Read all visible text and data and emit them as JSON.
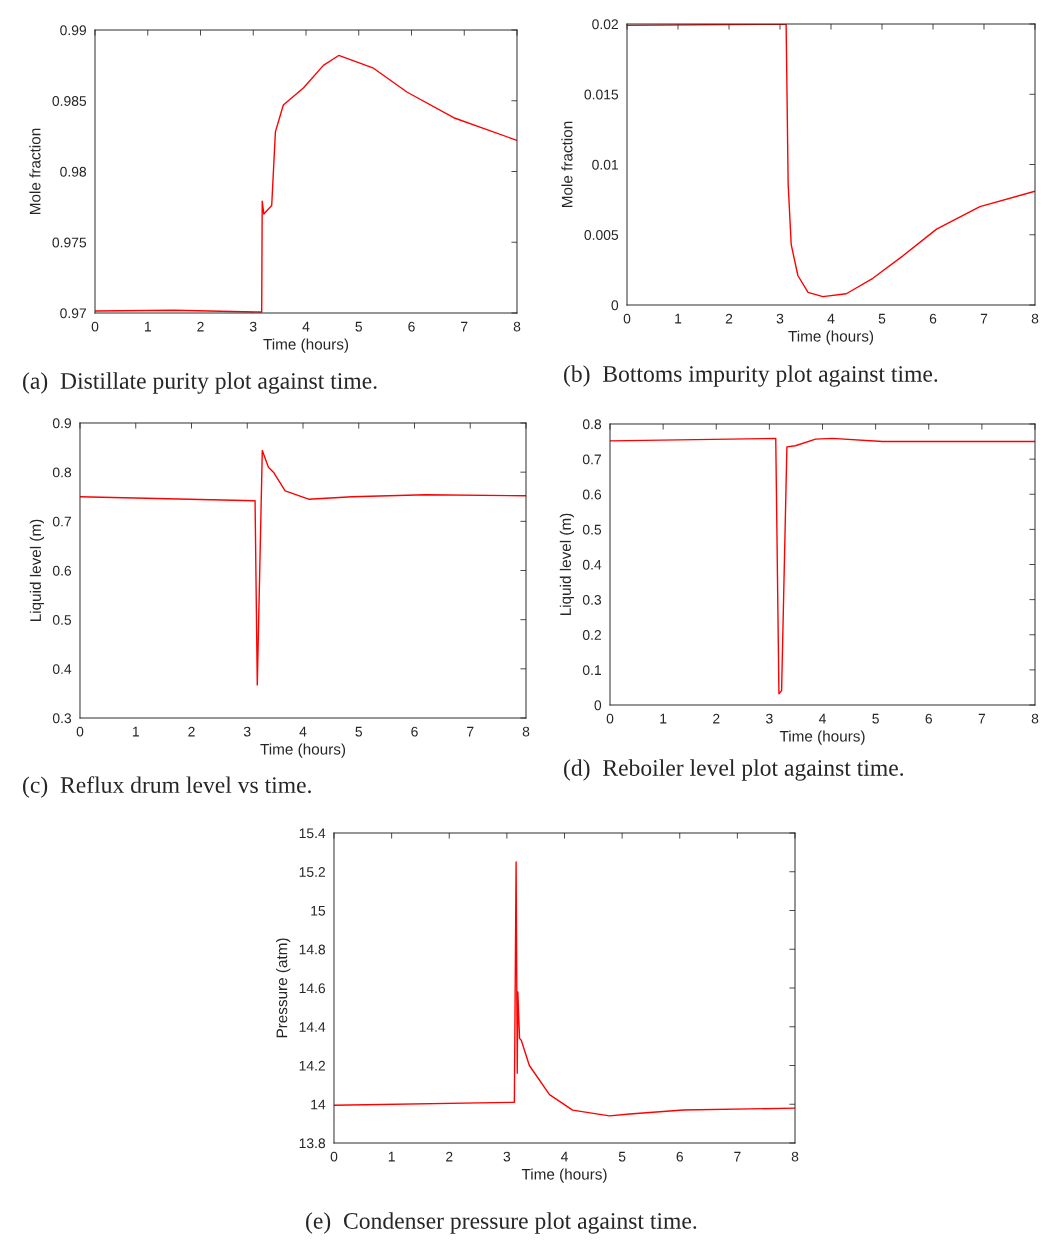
{
  "chart_data": [
    {
      "type": "line",
      "xlabel": "Time (hours)",
      "ylabel": "Mole fraction",
      "annotations": [
        "(a)  Distillate purity plot against time."
      ],
      "xlim": [
        0,
        8
      ],
      "ylim": [
        0.97,
        0.99
      ],
      "xticks": [
        0,
        1,
        2,
        3,
        4,
        5,
        6,
        7,
        8
      ],
      "yticks": [
        0.97,
        0.975,
        0.98,
        0.985,
        0.99
      ],
      "grid": false,
      "series": [
        {
          "color": "#ff0000",
          "x": [
            0,
            1.5,
            3.12,
            3.16,
            3.17,
            3.2,
            3.35,
            3.42,
            3.57,
            3.95,
            4.33,
            4.62,
            5.28,
            5.92,
            6.8,
            8
          ],
          "values": [
            0.97014,
            0.97019,
            0.97007,
            0.97007,
            0.9779,
            0.977,
            0.9776,
            0.9828,
            0.9847,
            0.9859,
            0.9875,
            0.9882,
            0.9873,
            0.9856,
            0.9838,
            0.9822
          ]
        }
      ]
    },
    {
      "type": "line",
      "xlabel": "Time (hours)",
      "ylabel": "Mole fraction",
      "annotations": [
        "(b)  Bottoms impurity plot against time."
      ],
      "xlim": [
        0,
        8
      ],
      "ylim": [
        0,
        0.02
      ],
      "xticks": [
        0,
        1,
        2,
        3,
        4,
        5,
        6,
        7,
        8
      ],
      "yticks": [
        0,
        0.005,
        0.01,
        0.015,
        0.02
      ],
      "grid": false,
      "series": [
        {
          "color": "#ff0000",
          "x": [
            0,
            3.12,
            3.16,
            3.22,
            3.35,
            3.55,
            3.84,
            4.3,
            4.82,
            5.41,
            6.07,
            6.92,
            8
          ],
          "values": [
            0.0199,
            0.02,
            0.0086,
            0.0043,
            0.0021,
            0.0009,
            0.0006,
            0.0008,
            0.0019,
            0.0035,
            0.0054,
            0.007,
            0.0081
          ]
        }
      ]
    },
    {
      "type": "line",
      "xlabel": "Time (hours)",
      "ylabel": "Liquid level (m)",
      "annotations": [
        "(c)  Reflux drum level vs time."
      ],
      "xlim": [
        0,
        8
      ],
      "ylim": [
        0.3,
        0.9
      ],
      "xticks": [
        0,
        1,
        2,
        3,
        4,
        5,
        6,
        7,
        8
      ],
      "yticks": [
        0.3,
        0.4,
        0.5,
        0.6,
        0.7,
        0.8,
        0.9
      ],
      "grid": false,
      "series": [
        {
          "color": "#ff0000",
          "x": [
            0,
            3.14,
            3.18,
            3.27,
            3.38,
            3.47,
            3.68,
            4.1,
            4.88,
            6.2,
            8
          ],
          "values": [
            0.75,
            0.742,
            0.367,
            0.844,
            0.81,
            0.8,
            0.762,
            0.745,
            0.75,
            0.754,
            0.752
          ]
        }
      ]
    },
    {
      "type": "line",
      "xlabel": "Time (hours)",
      "ylabel": "Liquid level (m)",
      "annotations": [
        "(d)  Reboiler level plot against time."
      ],
      "xlim": [
        0,
        8
      ],
      "ylim": [
        0,
        0.8
      ],
      "xticks": [
        0,
        1,
        2,
        3,
        4,
        5,
        6,
        7,
        8
      ],
      "yticks": [
        0,
        0.1,
        0.2,
        0.3,
        0.4,
        0.5,
        0.6,
        0.7,
        0.8
      ],
      "grid": false,
      "series": [
        {
          "color": "#ff0000",
          "x": [
            0,
            3.12,
            3.18,
            3.23,
            3.33,
            3.49,
            3.87,
            4.18,
            5.13,
            8
          ],
          "values": [
            0.752,
            0.759,
            0.032,
            0.041,
            0.735,
            0.738,
            0.757,
            0.759,
            0.75,
            0.75
          ]
        }
      ]
    },
    {
      "type": "line",
      "xlabel": "Time (hours)",
      "ylabel": "Pressure (atm)",
      "annotations": [
        "(e)  Condenser pressure plot against time."
      ],
      "xlim": [
        0,
        8
      ],
      "ylim": [
        13.8,
        15.4
      ],
      "xticks": [
        0,
        1,
        2,
        3,
        4,
        5,
        6,
        7,
        8
      ],
      "yticks": [
        13.8,
        14,
        14.2,
        14.4,
        14.6,
        14.8,
        15,
        15.2,
        15.4
      ],
      "grid": false,
      "series": [
        {
          "color": "#ff0000",
          "x": [
            0,
            3.13,
            3.16,
            3.18,
            3.19,
            3.22,
            3.25,
            3.39,
            3.74,
            4.14,
            4.78,
            5.13,
            6.06,
            8
          ],
          "values": [
            13.995,
            14.01,
            15.25,
            14.16,
            14.58,
            14.34,
            14.33,
            14.2,
            14.05,
            13.97,
            13.94,
            13.95,
            13.97,
            13.98
          ]
        }
      ]
    }
  ]
}
